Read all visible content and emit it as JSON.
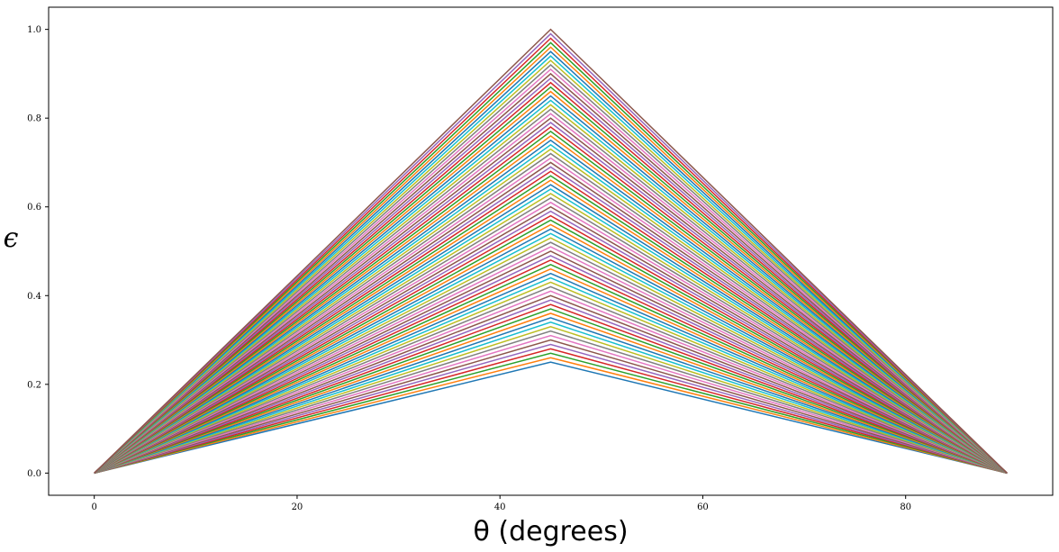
{
  "chart_data": {
    "type": "line",
    "title": "",
    "xlabel": "θ (degrees)",
    "ylabel": "ϵ",
    "xlim": [
      -4.5,
      94.5
    ],
    "ylim": [
      -0.05,
      1.05
    ],
    "xticks": [
      0,
      20,
      40,
      60,
      80
    ],
    "xtick_labels": [
      "0",
      "20",
      "40",
      "60",
      "80"
    ],
    "yticks": [
      0.0,
      0.2,
      0.4,
      0.6,
      0.8,
      1.0
    ],
    "ytick_labels": [
      "0.0",
      "0.2",
      "0.4",
      "0.6",
      "0.8",
      "1.0"
    ],
    "grid": false,
    "legend": false,
    "x": [
      0,
      45,
      90
    ],
    "peaks": [
      0.25,
      0.26,
      0.27,
      0.28,
      0.29,
      0.3,
      0.31,
      0.32,
      0.33,
      0.34,
      0.35,
      0.36,
      0.37,
      0.38,
      0.39,
      0.4,
      0.41,
      0.42,
      0.43,
      0.44,
      0.45,
      0.46,
      0.47,
      0.48,
      0.49,
      0.5,
      0.51,
      0.52,
      0.53,
      0.54,
      0.55,
      0.56,
      0.57,
      0.58,
      0.59,
      0.6,
      0.61,
      0.62,
      0.63,
      0.64,
      0.65,
      0.66,
      0.67,
      0.68,
      0.69,
      0.7,
      0.71,
      0.72,
      0.73,
      0.74,
      0.75,
      0.76,
      0.77,
      0.78,
      0.79,
      0.8,
      0.81,
      0.82,
      0.83,
      0.84,
      0.85,
      0.86,
      0.87,
      0.88,
      0.89,
      0.9,
      0.91,
      0.92,
      0.93,
      0.94,
      0.95,
      0.96,
      0.97,
      0.98,
      0.99,
      1.0
    ],
    "series_values_note_free": true,
    "colors": [
      "#1f77b4",
      "#ff7f0e",
      "#2ca02c",
      "#d62728",
      "#9467bd",
      "#8c564b",
      "#e377c2",
      "#7f7f7f",
      "#bcbd22",
      "#17becf"
    ]
  }
}
